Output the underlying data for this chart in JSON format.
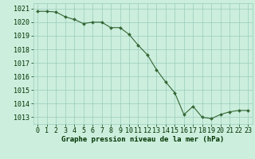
{
  "x": [
    0,
    1,
    2,
    3,
    4,
    5,
    6,
    7,
    8,
    9,
    10,
    11,
    12,
    13,
    14,
    15,
    16,
    17,
    18,
    19,
    20,
    21,
    22,
    23
  ],
  "y": [
    1020.8,
    1020.8,
    1020.75,
    1020.4,
    1020.2,
    1019.9,
    1020.0,
    1020.0,
    1019.6,
    1019.6,
    1019.1,
    1018.3,
    1017.6,
    1016.5,
    1015.6,
    1014.8,
    1013.2,
    1013.8,
    1013.0,
    1012.9,
    1013.2,
    1013.4,
    1013.5,
    1013.5
  ],
  "ylabel_values": [
    1013,
    1014,
    1015,
    1016,
    1017,
    1018,
    1019,
    1020,
    1021
  ],
  "ylim": [
    1012.5,
    1021.4
  ],
  "xlim": [
    -0.5,
    23.5
  ],
  "line_color": "#336633",
  "marker_color": "#336633",
  "bg_color": "#cceedd",
  "grid_color": "#99ccbb",
  "xlabel": "Graphe pression niveau de la mer (hPa)",
  "xlabel_color": "#003300",
  "tick_color": "#003300",
  "tick_fontsize": 6.0,
  "xlabel_fontsize": 6.5
}
